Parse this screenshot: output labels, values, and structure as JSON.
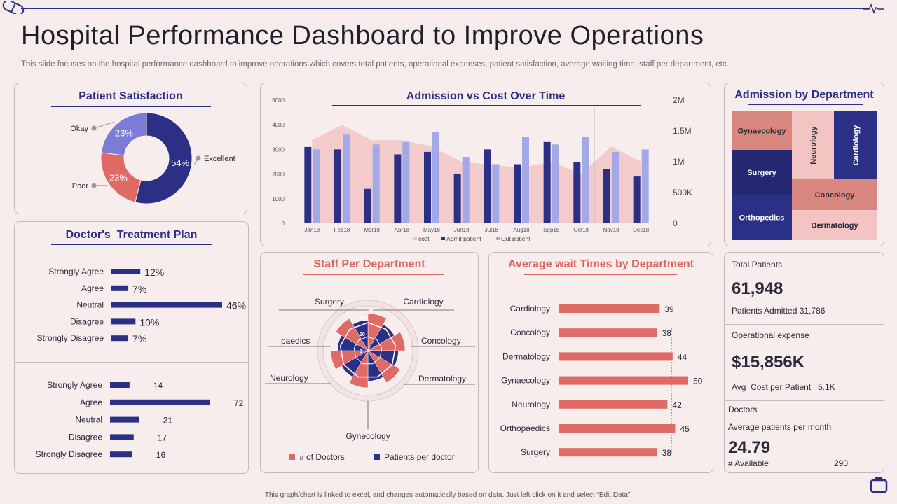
{
  "title": "Hospital Performance Dashboard to Improve Operations",
  "subtitle": "This slide focuses on the hospital performance dashboard to improve operations which covers total patients, operational expenses, patient satisfaction, average waiting time, staff per department, etc.",
  "footer": "This graph/chart is linked to excel, and changes automatically based on data. Just left click on it and select “Edit Data”.",
  "colors": {
    "navy": "#2b2f86",
    "coral": "#d96660",
    "lavender": "#8f8fe0",
    "pink": "#f0c2c0"
  },
  "chart_data": [
    {
      "id": "patient_satisfaction",
      "type": "pie",
      "title": "Patient Satisfaction",
      "categories": [
        "Excellent",
        "Poor",
        "Okay"
      ],
      "values": [
        54,
        23,
        23
      ],
      "labels": [
        "54%",
        "23%",
        "23%"
      ],
      "colors": [
        "#2b2f86",
        "#e06a66",
        "#7b7bd8"
      ]
    },
    {
      "id": "admission_vs_cost",
      "type": "bar",
      "title": "Admission vs Cost Over Time",
      "categories": [
        "Jan18",
        "Feb18",
        "Mar18",
        "Apr18",
        "May18",
        "Jun18",
        "Jul18",
        "Aug18",
        "Sep18",
        "Oct18",
        "Nov18",
        "Dec18"
      ],
      "series": [
        {
          "name": "cost",
          "type": "area",
          "axis": "right",
          "values": [
            1350000,
            1600000,
            1350000,
            1350000,
            1250000,
            1000000,
            950000,
            900000,
            1000000,
            800000,
            1250000,
            1000000
          ]
        },
        {
          "name": "Admit patient",
          "type": "bar",
          "axis": "left",
          "values": [
            3100,
            3000,
            1400,
            2800,
            2900,
            2000,
            3000,
            2400,
            3300,
            2500,
            2200,
            1900
          ]
        },
        {
          "name": "Out patient",
          "type": "bar",
          "axis": "left",
          "values": [
            3000,
            3600,
            3200,
            3300,
            3700,
            2700,
            2400,
            3500,
            3200,
            3500,
            2900,
            3000
          ]
        }
      ],
      "left_ticks": [
        "0",
        "1000",
        "2000",
        "3000",
        "4000",
        "5000"
      ],
      "right_ticks": [
        "0",
        "500K",
        "1M",
        "1.5M",
        "2M"
      ],
      "ylim_left": [
        0,
        5000
      ],
      "ylim_right": [
        0,
        2000000
      ],
      "legend": [
        "cost",
        "Admit patient",
        "Out patient"
      ],
      "legend_position": "bottom"
    },
    {
      "id": "admission_by_department",
      "type": "treemap",
      "title": "Admission by Department",
      "categories": [
        "Gynaecology",
        "Surgery",
        "Orthopedics",
        "Neurology",
        "Cardiology",
        "Concology",
        "Dermatology"
      ]
    },
    {
      "id": "doctors_treatment_plan_1",
      "type": "bar",
      "orientation": "horizontal",
      "title": "Doctor's  Treatment Plan",
      "categories": [
        "Strongly Agree",
        "Agree",
        "Neutral",
        "Disagree",
        "Strongly Disagree"
      ],
      "values": [
        12,
        7,
        46,
        10,
        7
      ],
      "labels": [
        "12%",
        "7%",
        "46%",
        "10%",
        "7%"
      ]
    },
    {
      "id": "doctors_treatment_plan_2",
      "type": "bar",
      "orientation": "horizontal",
      "categories": [
        "Strongly Agree",
        "Agree",
        "Neutral",
        "Disagree",
        "Strongly Disagree"
      ],
      "values": [
        14,
        72,
        21,
        17,
        16
      ],
      "labels": [
        "14",
        "72",
        "21",
        "17",
        "16"
      ]
    },
    {
      "id": "staff_per_department",
      "type": "radar",
      "title": "Staff Per Department",
      "categories": [
        "Surgery",
        "Cardiology",
        "Concology",
        "Dermatology",
        "Gynecology",
        "Neurology",
        "paedics"
      ],
      "axis_ticks": [
        "0",
        "20",
        "40"
      ],
      "legend": [
        "# of Doctors",
        "Patients per doctor"
      ],
      "legend_position": "bottom"
    },
    {
      "id": "avg_wait_times",
      "type": "bar",
      "orientation": "horizontal",
      "title": "Average wait Times by Department",
      "categories": [
        "Cardiology",
        "Concology",
        "Dermatology",
        "Gynaecology",
        "Neurology",
        "Orthopaedics",
        "Surgery"
      ],
      "values": [
        39,
        38,
        44,
        50,
        42,
        45,
        38
      ],
      "labels": [
        "39",
        "38",
        "44",
        "50",
        "42",
        "45",
        "38"
      ]
    }
  ],
  "stats": {
    "total_patients_label": "Total Patients",
    "total_patients_value": "61,948",
    "patients_admitted": "Patients Admitted 31,786",
    "opex_label": "Operational expense",
    "opex_value": "$15,856K",
    "avg_cost_label": "Avg  Cost per Patient",
    "avg_cost_value": "5.1K",
    "doctors_label": "Doctors",
    "avg_patients_label": "Average patients per month",
    "avg_patients_value": "24.79",
    "available_label": "# Available",
    "available_value": "290"
  }
}
